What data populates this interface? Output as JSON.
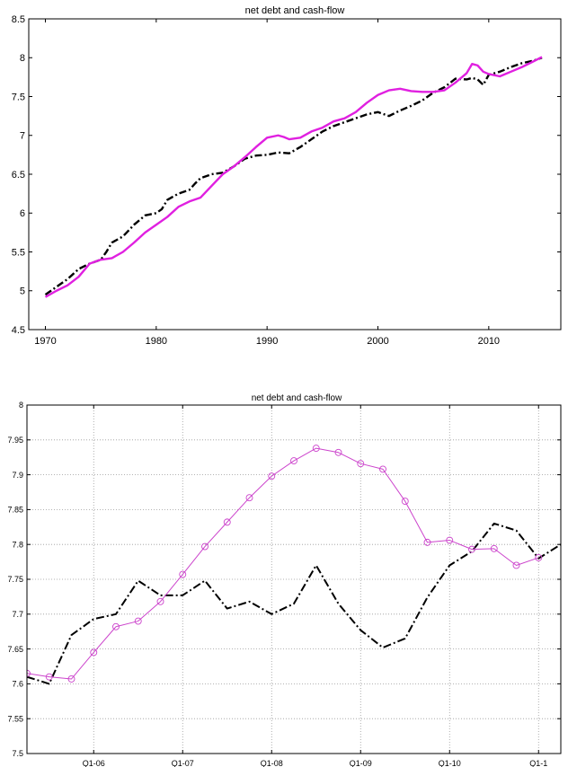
{
  "chart_data": [
    {
      "type": "line",
      "title": "net debt and cash-flow",
      "xlabel": "",
      "ylabel": "",
      "xlim": [
        1968.5,
        2016.5
      ],
      "ylim": [
        4.5,
        8.5
      ],
      "xticks": [
        1970,
        1980,
        1990,
        2000,
        2010
      ],
      "yticks": [
        4.5,
        5,
        5.5,
        6,
        6.5,
        7,
        7.5,
        8,
        8.5
      ],
      "grid": false,
      "colors": {
        "dashed": "#000000",
        "solid": "#e020e0"
      },
      "series": [
        {
          "style": "dash-dot",
          "color": "#000000",
          "x": [
            1970.0,
            1971.0,
            1972.0,
            1973.0,
            1974.0,
            1975.0,
            1975.5,
            1976.0,
            1977.0,
            1978.0,
            1979.0,
            1980.0,
            1980.5,
            1981.0,
            1982.0,
            1983.0,
            1983.5,
            1984.0,
            1985.0,
            1986.0,
            1987.0,
            1988.0,
            1989.0,
            1990.0,
            1991.0,
            1992.0,
            1993.0,
            1994.0,
            1995.0,
            1996.0,
            1997.0,
            1998.0,
            1999.0,
            2000.0,
            2001.0,
            2002.0,
            2003.0,
            2004.0,
            2005.0,
            2006.0,
            2007.0,
            2008.0,
            2008.5,
            2009.0,
            2009.5,
            2010.0,
            2011.0,
            2012.0,
            2013.0,
            2014.0,
            2014.8
          ],
          "y": [
            4.95,
            5.05,
            5.15,
            5.28,
            5.35,
            5.4,
            5.5,
            5.62,
            5.7,
            5.85,
            5.97,
            6.0,
            6.05,
            6.17,
            6.25,
            6.3,
            6.38,
            6.45,
            6.5,
            6.52,
            6.6,
            6.7,
            6.74,
            6.75,
            6.78,
            6.77,
            6.85,
            6.95,
            7.05,
            7.12,
            7.17,
            7.22,
            7.27,
            7.3,
            7.25,
            7.32,
            7.38,
            7.45,
            7.55,
            7.62,
            7.73,
            7.72,
            7.74,
            7.72,
            7.65,
            7.78,
            7.82,
            7.88,
            7.93,
            7.96,
            8.0
          ]
        },
        {
          "style": "solid",
          "color": "#e020e0",
          "x": [
            1970.0,
            1971.0,
            1972.0,
            1973.0,
            1974.0,
            1975.0,
            1976.0,
            1977.0,
            1978.0,
            1979.0,
            1980.0,
            1981.0,
            1982.0,
            1983.0,
            1984.0,
            1985.0,
            1986.0,
            1987.0,
            1988.0,
            1989.0,
            1990.0,
            1991.0,
            1991.5,
            1992.0,
            1993.0,
            1994.0,
            1995.0,
            1996.0,
            1997.0,
            1998.0,
            1999.0,
            2000.0,
            2001.0,
            2002.0,
            2003.0,
            2004.0,
            2005.0,
            2006.0,
            2007.0,
            2008.0,
            2008.5,
            2009.0,
            2009.5,
            2010.0,
            2011.0,
            2012.0,
            2013.0,
            2014.0,
            2014.8
          ],
          "y": [
            4.92,
            5.0,
            5.07,
            5.18,
            5.35,
            5.4,
            5.42,
            5.5,
            5.62,
            5.75,
            5.85,
            5.95,
            6.08,
            6.15,
            6.2,
            6.35,
            6.5,
            6.6,
            6.72,
            6.85,
            6.97,
            7.0,
            6.98,
            6.95,
            6.97,
            7.05,
            7.1,
            7.18,
            7.22,
            7.3,
            7.42,
            7.52,
            7.58,
            7.6,
            7.57,
            7.56,
            7.56,
            7.58,
            7.68,
            7.8,
            7.92,
            7.9,
            7.82,
            7.79,
            7.76,
            7.82,
            7.88,
            7.95,
            8.01
          ]
        }
      ]
    },
    {
      "type": "line",
      "title": "net debt and cash-flow",
      "xlabel": "",
      "ylabel": "",
      "xlim": [
        2005.25,
        2011.25
      ],
      "ylim": [
        7.5,
        8.0
      ],
      "xticks": [
        2006,
        2007,
        2008,
        2009,
        2010,
        2011
      ],
      "xtick_labels": [
        "Q1-06",
        "Q1-07",
        "Q1-08",
        "Q1-09",
        "Q1-10",
        "Q1-1"
      ],
      "yticks": [
        7.5,
        7.55,
        7.6,
        7.65,
        7.7,
        7.75,
        7.8,
        7.85,
        7.9,
        7.95,
        8.0
      ],
      "grid": true,
      "colors": {
        "dashed": "#000000",
        "solid": "#cc44cc"
      },
      "series": [
        {
          "style": "dash-dot",
          "color": "#000000",
          "markers": false,
          "x": [
            2005.25,
            2005.5,
            2005.75,
            2006.0,
            2006.25,
            2006.5,
            2006.75,
            2007.0,
            2007.25,
            2007.5,
            2007.75,
            2008.0,
            2008.25,
            2008.5,
            2008.75,
            2009.0,
            2009.25,
            2009.5,
            2009.75,
            2010.0,
            2010.25,
            2010.5,
            2010.75,
            2011.0,
            2011.25
          ],
          "y": [
            7.61,
            7.6,
            7.67,
            7.693,
            7.7,
            7.748,
            7.727,
            7.727,
            7.748,
            7.708,
            7.718,
            7.7,
            7.715,
            7.77,
            7.715,
            7.677,
            7.652,
            7.665,
            7.724,
            7.77,
            7.79,
            7.83,
            7.82,
            7.78,
            7.8
          ]
        },
        {
          "style": "solid",
          "color": "#cc44cc",
          "markers": true,
          "x": [
            2005.25,
            2005.5,
            2005.75,
            2006.0,
            2006.25,
            2006.5,
            2006.75,
            2007.0,
            2007.25,
            2007.5,
            2007.75,
            2008.0,
            2008.25,
            2008.5,
            2008.75,
            2009.0,
            2009.25,
            2009.5,
            2009.75,
            2010.0,
            2010.25,
            2010.5,
            2010.75,
            2011.0
          ],
          "y": [
            7.615,
            7.61,
            7.607,
            7.645,
            7.682,
            7.69,
            7.718,
            7.757,
            7.797,
            7.832,
            7.867,
            7.898,
            7.92,
            7.938,
            7.932,
            7.916,
            7.908,
            7.862,
            7.803,
            7.806,
            7.793,
            7.794,
            7.77,
            7.781
          ]
        }
      ]
    }
  ]
}
